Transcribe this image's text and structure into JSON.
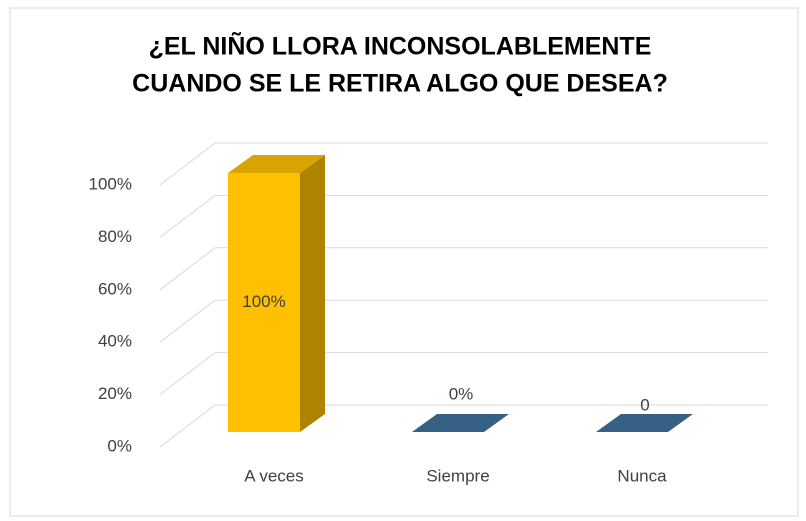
{
  "chart_data": {
    "type": "bar3d",
    "title": [
      "¿EL NIÑO LLORA INCONSOLABLEMENTE",
      "CUANDO SE LE RETIRA ALGO QUE DESEA?"
    ],
    "categories": [
      "A veces",
      "Siempre",
      "Nunca"
    ],
    "values": [
      100,
      0,
      0
    ],
    "value_labels": [
      "100%",
      "0%",
      "0"
    ],
    "colors": [
      "#FFC000",
      "#41719C",
      "#41719C"
    ],
    "ylim": [
      0,
      100
    ],
    "yticks": [
      {
        "value": 0,
        "label": "0%"
      },
      {
        "value": 20,
        "label": "20%"
      },
      {
        "value": 40,
        "label": "40%"
      },
      {
        "value": 60,
        "label": "60%"
      },
      {
        "value": 80,
        "label": "80%"
      },
      {
        "value": 100,
        "label": "100%"
      }
    ],
    "grid": true
  }
}
